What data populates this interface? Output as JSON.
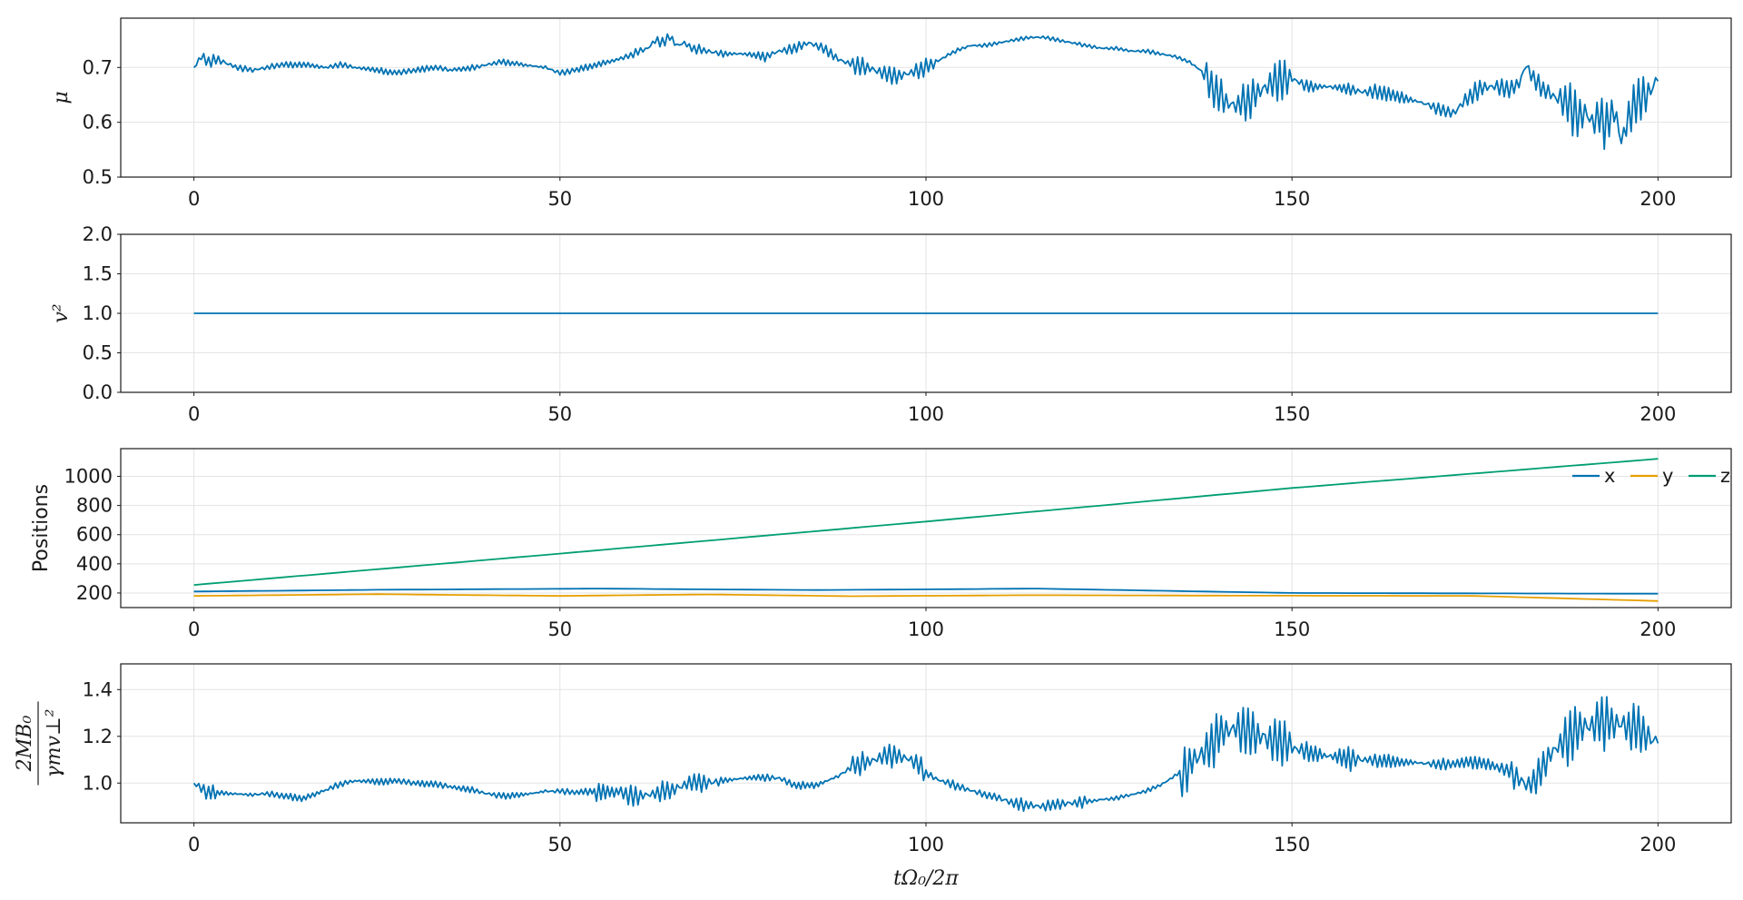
{
  "colors": {
    "blue": "#0072b2",
    "orange": "#e69f00",
    "green": "#009e73"
  },
  "chart_data": [
    {
      "type": "line",
      "ylabel": "μ",
      "xlim": [
        -10,
        210
      ],
      "ylim": [
        0.5,
        0.79
      ],
      "xticks": [
        "0",
        "50",
        "100",
        "150",
        "200"
      ],
      "yticks": [
        "0.5",
        "0.6",
        "0.7"
      ],
      "grid": true,
      "series": [
        {
          "x": [
            0,
            1,
            2,
            3,
            4,
            5,
            6,
            8,
            10,
            12,
            15,
            18,
            20,
            22,
            25,
            28,
            30,
            33,
            35,
            38,
            40,
            42,
            45,
            48,
            50,
            52,
            55,
            58,
            60,
            62,
            63,
            64,
            65,
            66,
            67,
            68,
            70,
            72,
            75,
            78,
            80,
            82,
            84,
            86,
            88,
            90,
            92,
            94,
            96,
            98,
            100,
            102,
            104,
            106,
            108,
            110,
            112,
            114,
            116,
            118,
            120,
            122,
            124,
            126,
            128,
            130,
            132,
            134,
            136,
            138,
            139,
            140,
            141,
            142,
            143,
            144,
            145,
            146,
            147,
            148,
            150,
            152,
            155,
            158,
            160,
            162,
            165,
            168,
            170,
            172,
            174,
            176,
            178,
            180,
            181,
            182,
            183,
            184,
            185,
            186,
            187,
            188,
            189,
            190,
            191,
            192,
            193,
            194,
            195,
            196,
            197,
            198,
            199,
            200
          ],
          "y": [
            0.7,
            0.72,
            0.71,
            0.715,
            0.71,
            0.705,
            0.7,
            0.695,
            0.7,
            0.705,
            0.705,
            0.7,
            0.705,
            0.7,
            0.695,
            0.69,
            0.695,
            0.7,
            0.695,
            0.7,
            0.705,
            0.71,
            0.705,
            0.7,
            0.69,
            0.695,
            0.705,
            0.715,
            0.725,
            0.735,
            0.75,
            0.745,
            0.755,
            0.74,
            0.745,
            0.735,
            0.73,
            0.725,
            0.725,
            0.72,
            0.73,
            0.735,
            0.745,
            0.735,
            0.715,
            0.705,
            0.7,
            0.69,
            0.685,
            0.69,
            0.7,
            0.715,
            0.73,
            0.74,
            0.74,
            0.745,
            0.75,
            0.755,
            0.755,
            0.75,
            0.745,
            0.74,
            0.735,
            0.735,
            0.73,
            0.73,
            0.725,
            0.72,
            0.71,
            0.69,
            0.67,
            0.65,
            0.64,
            0.63,
            0.635,
            0.64,
            0.65,
            0.66,
            0.67,
            0.675,
            0.68,
            0.665,
            0.665,
            0.66,
            0.655,
            0.655,
            0.645,
            0.635,
            0.625,
            0.615,
            0.645,
            0.665,
            0.665,
            0.66,
            0.67,
            0.705,
            0.68,
            0.665,
            0.655,
            0.645,
            0.64,
            0.625,
            0.605,
            0.62,
            0.6,
            0.61,
            0.59,
            0.625,
            0.565,
            0.61,
            0.64,
            0.645,
            0.66,
            0.675
          ]
        }
      ]
    },
    {
      "type": "line",
      "ylabel": "v²",
      "xlim": [
        -10,
        210
      ],
      "ylim": [
        0,
        2
      ],
      "xticks": [
        "0",
        "50",
        "100",
        "150",
        "200"
      ],
      "yticks": [
        "0.0",
        "0.5",
        "1.0",
        "1.5",
        "2.0"
      ],
      "grid": true,
      "series": [
        {
          "x": [
            0,
            200
          ],
          "y": [
            1.0,
            1.0
          ]
        }
      ]
    },
    {
      "type": "line",
      "ylabel": "Positions",
      "xlim": [
        -10,
        210
      ],
      "ylim": [
        100,
        1190
      ],
      "xticks": [
        "0",
        "50",
        "100",
        "150",
        "200"
      ],
      "yticks": [
        "200",
        "400",
        "600",
        "800",
        "1000"
      ],
      "grid": true,
      "legend": "top-right",
      "series": [
        {
          "name": "x",
          "x": [
            0,
            25,
            55,
            85,
            115,
            150,
            200
          ],
          "y": [
            210,
            222,
            230,
            220,
            230,
            200,
            195
          ]
        },
        {
          "name": "y",
          "x": [
            0,
            25,
            50,
            70,
            90,
            115,
            140,
            175,
            200
          ],
          "y": [
            180,
            192,
            180,
            190,
            178,
            185,
            182,
            180,
            145
          ]
        },
        {
          "name": "z",
          "x": [
            0,
            50,
            100,
            150,
            200
          ],
          "y": [
            255,
            470,
            690,
            920,
            1120
          ]
        }
      ]
    },
    {
      "type": "line",
      "ylabel": "2MB₀ / γmv⊥²",
      "xlim": [
        -10,
        210
      ],
      "ylim": [
        0.83,
        1.51
      ],
      "xticks": [
        "0",
        "50",
        "100",
        "150",
        "200"
      ],
      "yticks": [
        "1.0",
        "1.2",
        "1.4"
      ],
      "xlabel": "tΩ₀/2π",
      "grid": true,
      "series": [
        {
          "x": [
            0,
            2,
            5,
            8,
            10,
            12,
            15,
            18,
            20,
            22,
            25,
            28,
            30,
            33,
            35,
            38,
            40,
            42,
            45,
            48,
            50,
            52,
            55,
            58,
            60,
            62,
            64,
            65,
            66,
            67,
            68,
            70,
            72,
            75,
            78,
            80,
            82,
            85,
            88,
            90,
            92,
            94,
            95,
            96,
            97,
            98,
            100,
            102,
            104,
            106,
            108,
            110,
            112,
            114,
            116,
            118,
            120,
            122,
            124,
            126,
            128,
            130,
            132,
            134,
            136,
            138,
            139,
            140,
            141,
            142,
            143,
            144,
            145,
            146,
            147,
            148,
            150,
            152,
            155,
            158,
            160,
            162,
            165,
            168,
            170,
            172,
            175,
            178,
            180,
            181,
            182,
            183,
            184,
            185,
            186,
            188,
            189,
            190,
            191,
            192,
            193,
            194,
            195,
            196,
            197,
            198,
            199,
            200
          ],
          "y": [
            1.0,
            0.96,
            0.955,
            0.95,
            0.955,
            0.945,
            0.935,
            0.97,
            0.995,
            1.01,
            1.005,
            1.01,
            1.0,
            0.995,
            0.985,
            0.97,
            0.955,
            0.945,
            0.95,
            0.965,
            0.965,
            0.96,
            0.965,
            0.96,
            0.945,
            0.95,
            0.96,
            0.97,
            0.98,
            0.99,
            1.005,
            1.0,
            1.01,
            1.02,
            1.025,
            1.02,
            0.99,
            0.99,
            1.03,
            1.07,
            1.09,
            1.11,
            1.115,
            1.12,
            1.11,
            1.1,
            1.04,
            1.01,
            0.99,
            0.97,
            0.95,
            0.935,
            0.915,
            0.905,
            0.9,
            0.91,
            0.915,
            0.92,
            0.93,
            0.935,
            0.95,
            0.965,
            0.99,
            1.03,
            1.08,
            1.13,
            1.17,
            1.2,
            1.22,
            1.23,
            1.225,
            1.22,
            1.21,
            1.2,
            1.18,
            1.17,
            1.15,
            1.13,
            1.115,
            1.11,
            1.1,
            1.095,
            1.09,
            1.085,
            1.08,
            1.085,
            1.09,
            1.07,
            1.04,
            1.02,
            0.99,
            1.01,
            1.05,
            1.1,
            1.15,
            1.2,
            1.22,
            1.24,
            1.25,
            1.255,
            1.26,
            1.255,
            1.25,
            1.24,
            1.23,
            1.21,
            1.19,
            1.17
          ]
        }
      ]
    }
  ]
}
